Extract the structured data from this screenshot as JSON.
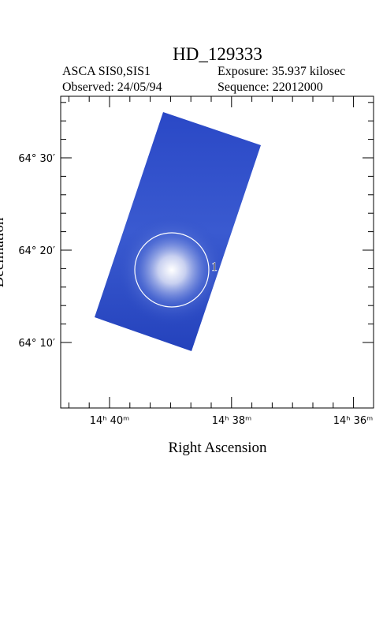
{
  "header": {
    "title": "HD_129333",
    "instrument": "ASCA SIS0,SIS1",
    "exposure": "Exposure: 35.937 kilosec",
    "observed": "Observed: 24/05/94",
    "sequence": "Sequence: 22012000"
  },
  "axes": {
    "x_label": "Right Ascension",
    "y_label": "Declination",
    "x_ticks": [
      "14ʰ 40ᵐ",
      "14ʰ 38ᵐ",
      "14ʰ 36ᵐ"
    ],
    "y_ticks": [
      "64° 30′",
      "64° 20′",
      "64° 10′"
    ]
  },
  "sources": [
    {
      "label": "1"
    }
  ]
}
